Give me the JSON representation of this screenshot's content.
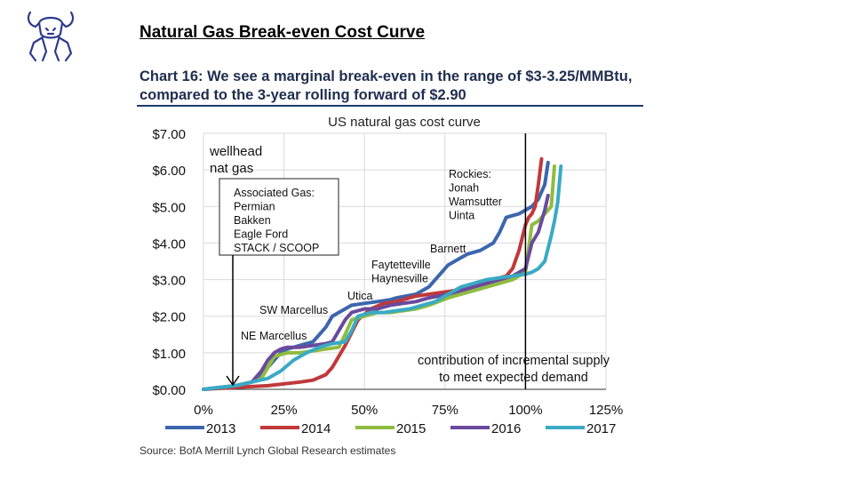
{
  "slide_title": "Natural Gas Break-even Cost Curve",
  "chart_caption_line1": "Chart 16: We see a marginal break-even in the range of $3-3.25/MMBtu,",
  "chart_caption_line2": "compared to the 3-year rolling forward of $2.90",
  "source": "Source: BofA Merrill Lynch Global Research estimates",
  "colors": {
    "2013": "#3c66ad",
    "2014": "#c0393b",
    "2015": "#8fbc3f",
    "2016": "#6a4a9c",
    "2017": "#3aaac4",
    "brand": "#2d3a8c"
  },
  "chart_data": {
    "type": "line",
    "title": "US natural gas cost curve",
    "xlabel": "",
    "ylabel": "",
    "xlim": [
      0,
      125
    ],
    "ylim": [
      0,
      7
    ],
    "x_tick_labels": [
      "0%",
      "25%",
      "50%",
      "75%",
      "100%",
      "125%"
    ],
    "x_ticks": [
      0,
      25,
      50,
      75,
      100,
      125
    ],
    "y_tick_labels": [
      "$0.00",
      "$1.00",
      "$2.00",
      "$3.00",
      "$4.00",
      "$5.00",
      "$6.00",
      "$7.00"
    ],
    "y_ticks": [
      0,
      1,
      2,
      3,
      4,
      5,
      6,
      7
    ],
    "grid": true,
    "legend_position": "bottom",
    "series": [
      {
        "name": "2013",
        "x": [
          0,
          5,
          10,
          15,
          18,
          20,
          22,
          24,
          26,
          28,
          30,
          32,
          34,
          36,
          38,
          40,
          44,
          46,
          50,
          54,
          58,
          60,
          66,
          70,
          72,
          76,
          80,
          82,
          86,
          90,
          92,
          94,
          96,
          98,
          100,
          102,
          104,
          106,
          107
        ],
        "y": [
          0,
          0.05,
          0.1,
          0.2,
          0.4,
          0.6,
          0.8,
          1.0,
          1.1,
          1.15,
          1.2,
          1.25,
          1.3,
          1.5,
          1.7,
          2.0,
          2.2,
          2.3,
          2.35,
          2.4,
          2.45,
          2.5,
          2.6,
          2.8,
          3.0,
          3.4,
          3.6,
          3.7,
          3.8,
          4.0,
          4.3,
          4.7,
          4.75,
          4.8,
          4.9,
          5.0,
          5.2,
          5.6,
          6.2
        ]
      },
      {
        "name": "2014",
        "x": [
          0,
          10,
          20,
          30,
          34,
          38,
          40,
          42,
          44,
          48,
          52,
          56,
          60,
          64,
          66,
          70,
          74,
          78,
          82,
          86,
          90,
          94,
          96,
          98,
          100,
          101,
          102,
          103,
          104,
          105
        ],
        "y": [
          0,
          0.05,
          0.1,
          0.2,
          0.25,
          0.4,
          0.6,
          0.9,
          1.2,
          1.9,
          2.2,
          2.35,
          2.4,
          2.5,
          2.55,
          2.6,
          2.65,
          2.7,
          2.8,
          2.9,
          3.0,
          3.1,
          3.3,
          3.8,
          4.5,
          4.7,
          4.8,
          5.0,
          5.6,
          6.3
        ]
      },
      {
        "name": "2015",
        "x": [
          0,
          5,
          10,
          15,
          18,
          20,
          22,
          26,
          30,
          34,
          38,
          42,
          44,
          46,
          50,
          54,
          58,
          62,
          66,
          70,
          76,
          80,
          84,
          88,
          92,
          96,
          100,
          102,
          104,
          106,
          108,
          109
        ],
        "y": [
          0,
          0.05,
          0.1,
          0.2,
          0.3,
          0.6,
          0.9,
          1.0,
          1.0,
          1.05,
          1.1,
          1.15,
          1.5,
          1.9,
          2.0,
          2.1,
          2.1,
          2.15,
          2.2,
          2.3,
          2.5,
          2.6,
          2.7,
          2.8,
          2.9,
          3.0,
          3.2,
          4.5,
          4.6,
          4.8,
          5.0,
          6.1
        ]
      },
      {
        "name": "2016",
        "x": [
          0,
          5,
          10,
          15,
          18,
          20,
          22,
          24,
          26,
          30,
          34,
          38,
          40,
          42,
          44,
          46,
          50,
          54,
          58,
          62,
          66,
          70,
          76,
          80,
          84,
          88,
          92,
          96,
          100,
          102,
          104,
          106,
          107
        ],
        "y": [
          0,
          0.05,
          0.1,
          0.2,
          0.5,
          0.8,
          1.0,
          1.1,
          1.15,
          1.15,
          1.2,
          1.25,
          1.3,
          1.6,
          1.9,
          2.1,
          2.2,
          2.2,
          2.3,
          2.35,
          2.4,
          2.5,
          2.6,
          2.7,
          2.8,
          2.9,
          3.0,
          3.1,
          3.3,
          4.0,
          4.3,
          4.9,
          5.3
        ]
      },
      {
        "name": "2017",
        "x": [
          0,
          5,
          10,
          15,
          20,
          24,
          28,
          32,
          36,
          38,
          40,
          44,
          46,
          48,
          52,
          56,
          60,
          64,
          68,
          72,
          76,
          80,
          84,
          88,
          92,
          96,
          100,
          102,
          104,
          106,
          108,
          109,
          110,
          111
        ],
        "y": [
          0,
          0.05,
          0.1,
          0.2,
          0.3,
          0.5,
          0.8,
          1.0,
          1.15,
          1.2,
          1.25,
          1.3,
          1.6,
          2.0,
          2.1,
          2.1,
          2.15,
          2.2,
          2.3,
          2.4,
          2.6,
          2.8,
          2.9,
          3.0,
          3.05,
          3.1,
          3.15,
          3.2,
          3.3,
          3.5,
          4.2,
          4.6,
          5.1,
          6.1
        ]
      }
    ],
    "vertical_line": {
      "x": 100
    },
    "annotations": [
      {
        "key": "wellhead",
        "lines": [
          "wellhead",
          "nat gas"
        ]
      },
      {
        "key": "associated",
        "lines": [
          "Associated Gas:",
          "Permian",
          "Bakken",
          "Eagle Ford",
          "STACK / SCOOP"
        ]
      },
      {
        "key": "rockies",
        "lines": [
          "Rockies:",
          "Jonah",
          "Wamsutter",
          "Uinta"
        ]
      },
      {
        "key": "barnett",
        "lines": [
          "Barnett"
        ]
      },
      {
        "key": "fayetteville",
        "lines": [
          "Faytetteville",
          "Haynesville"
        ]
      },
      {
        "key": "utica",
        "lines": [
          "Utica"
        ]
      },
      {
        "key": "sw_marcellus",
        "lines": [
          "SW Marcellus"
        ]
      },
      {
        "key": "ne_marcellus",
        "lines": [
          "NE Marcellus"
        ]
      },
      {
        "key": "contribution",
        "lines": [
          "contribution of incremental supply",
          "to meet expected demand"
        ]
      }
    ]
  }
}
